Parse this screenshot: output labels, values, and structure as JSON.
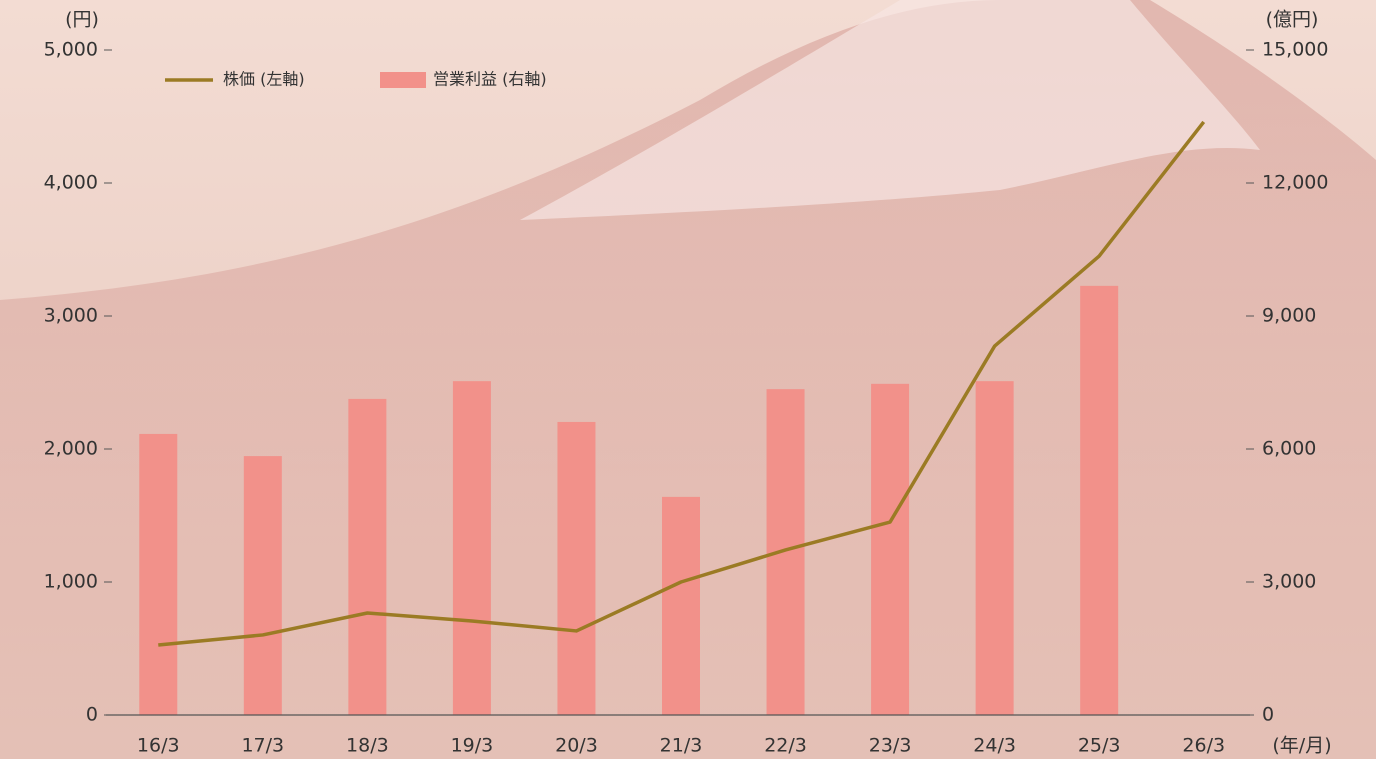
{
  "chart_data": {
    "type": "combo",
    "y_unit": "(円)",
    "y2_unit": "(億円)",
    "x_unit": "(年/月)",
    "categories": [
      "16/3",
      "17/3",
      "18/3",
      "19/3",
      "20/3",
      "21/3",
      "22/3",
      "23/3",
      "24/3",
      "25/3",
      "26/3"
    ],
    "series": [
      {
        "name": "株価 (左軸)",
        "type": "line",
        "color": "#9b7b24",
        "axis": "y",
        "values": [
          526,
          602,
          767,
          707,
          632,
          1000,
          1241,
          1451,
          2774,
          3451,
          4459
        ]
      },
      {
        "name": "営業利益 (右軸)",
        "type": "bar",
        "color": "#f2918a",
        "axis": "y2",
        "values": [
          6340,
          5840,
          7130,
          7530,
          6610,
          4920,
          7350,
          7470,
          7530,
          9680,
          null
        ]
      }
    ],
    "ylim": [
      0,
      5000
    ],
    "yticks": [
      0,
      {
        "value": 1000,
        "label": "1,000"
      },
      {
        "value": 2000,
        "label": "2,000"
      },
      {
        "value": 3000,
        "label": "3,000"
      },
      {
        "value": 4000,
        "label": "4,000"
      },
      {
        "value": 5000,
        "label": "5,000"
      }
    ],
    "y2lim": [
      0,
      15000
    ],
    "y2ticks": [
      0,
      {
        "value": 3000,
        "label": "3,000"
      },
      {
        "value": 6000,
        "label": "6,000"
      },
      {
        "value": 9000,
        "label": "9,000"
      },
      {
        "value": 12000,
        "label": "12,000"
      },
      {
        "value": 15000,
        "label": "15,000"
      }
    ],
    "legend": "top-left"
  }
}
